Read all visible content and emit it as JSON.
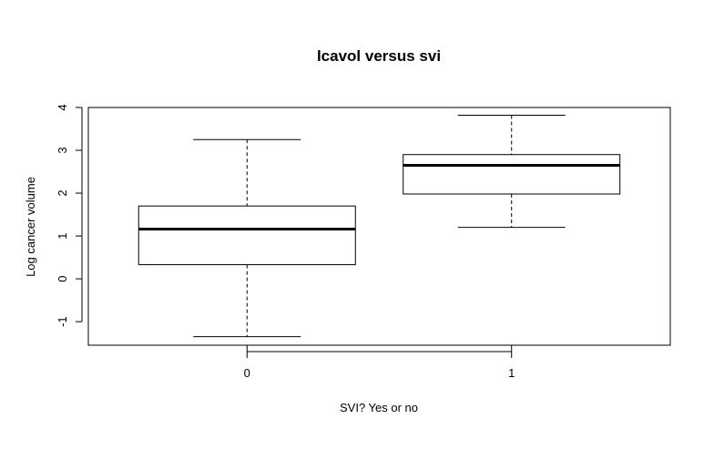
{
  "chart_data": {
    "type": "boxplot",
    "title": "lcavol versus svi",
    "xlabel": "SVI? Yes or no",
    "ylabel": "Log cancer volume",
    "categories": [
      "0",
      "1"
    ],
    "boxes": [
      {
        "category": "0",
        "min": -1.35,
        "q1": 0.33,
        "median": 1.16,
        "q3": 1.7,
        "max": 3.25
      },
      {
        "category": "1",
        "min": 1.2,
        "q1": 1.98,
        "median": 2.65,
        "q3": 2.9,
        "max": 3.82
      }
    ],
    "yticks": [
      -1,
      0,
      1,
      2,
      3,
      4
    ],
    "ylim": [
      -1.55,
      4.0
    ],
    "grid": false
  }
}
